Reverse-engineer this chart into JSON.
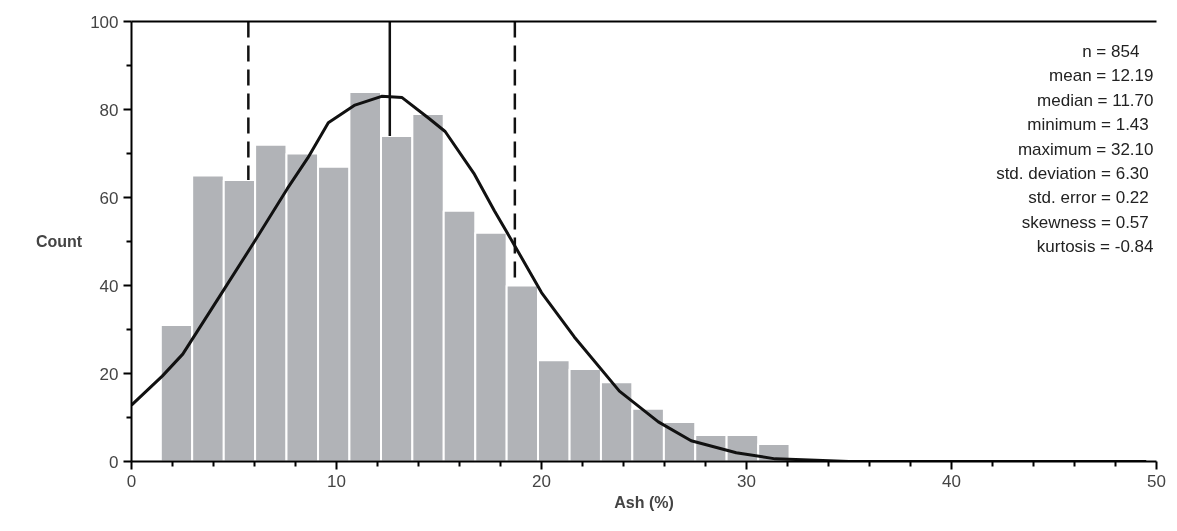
{
  "chart_data": {
    "type": "histogram",
    "xlabel": "Ash (%)",
    "ylabel": "Count",
    "bins": [
      1.43,
      2.96,
      4.5,
      6.03,
      7.56,
      9.1,
      10.63,
      12.17,
      13.7,
      15.23,
      16.77,
      18.3,
      19.83,
      21.37,
      22.9,
      24.43,
      25.97,
      27.5,
      29.03,
      30.57,
      32.1
    ],
    "values": [
      31,
      65,
      64,
      72,
      70,
      67,
      84,
      74,
      79,
      57,
      52,
      40,
      23,
      21,
      18,
      12,
      9,
      6,
      6,
      4
    ],
    "color": "#b1b3b7",
    "series": [
      {
        "type": "line",
        "color": "#111111",
        "x": [
          0,
          1.5,
          2.5,
          4.5,
          6,
          7.6,
          8.6,
          9.6,
          10.9,
          12.2,
          13.2,
          14.5,
          15.3,
          16.7,
          17.7,
          18.7,
          20,
          21.6,
          23.8,
          25.7,
          27.3,
          29.5,
          31.4,
          33.4,
          35,
          49.5
        ],
        "values": [
          12.8,
          19.4,
          24.4,
          39,
          50,
          62,
          69,
          77,
          81,
          83,
          82.7,
          78,
          75,
          65.5,
          57,
          49,
          38.4,
          28.3,
          16,
          9,
          4.7,
          2,
          0.6,
          0.3,
          0,
          0
        ]
      }
    ],
    "ref_lines": [
      {
        "axis": "x",
        "value": 5.7,
        "line_style": "dashed",
        "color": "#111111"
      },
      {
        "axis": "x",
        "value": 12.6,
        "line_style": "solid",
        "color": "#111111"
      },
      {
        "axis": "x",
        "value": 18.7,
        "line_style": "dashed",
        "color": "#111111"
      }
    ],
    "xlim": [
      0,
      50
    ],
    "ylim": [
      0,
      100
    ],
    "xticks": [
      0,
      {
        "value": 2,
        "label": null
      },
      {
        "value": 4,
        "label": null
      },
      {
        "value": 6,
        "label": null
      },
      {
        "value": 8,
        "label": null
      },
      10,
      {
        "value": 12,
        "label": null
      },
      {
        "value": 14,
        "label": null
      },
      {
        "value": 16,
        "label": null
      },
      {
        "value": 18,
        "label": null
      },
      20,
      {
        "value": 22,
        "label": null
      },
      {
        "value": 24,
        "label": null
      },
      {
        "value": 26,
        "label": null
      },
      {
        "value": 28,
        "label": null
      },
      30,
      {
        "value": 32,
        "label": null
      },
      {
        "value": 34,
        "label": null
      },
      {
        "value": 36,
        "label": null
      },
      {
        "value": 38,
        "label": null
      },
      40,
      {
        "value": 42,
        "label": null
      },
      {
        "value": 44,
        "label": null
      },
      {
        "value": 46,
        "label": null
      },
      {
        "value": 48,
        "label": null
      },
      50
    ],
    "yticks": [
      0,
      {
        "value": 10,
        "label": null
      },
      20,
      {
        "value": 30,
        "label": null
      },
      40,
      {
        "value": 50,
        "label": null
      },
      60,
      {
        "value": 70,
        "label": null
      },
      80,
      {
        "value": 90,
        "label": null
      },
      100
    ],
    "grid": false,
    "annotations": [
      "n =    854",
      "mean = 12.19",
      "median = 11.70",
      "minimum =  1.43",
      "maximum = 32.10",
      "std. deviation =  6.30",
      "std. error =  0.22",
      "skewness =  0.57",
      "kurtosis = -0.84"
    ]
  }
}
